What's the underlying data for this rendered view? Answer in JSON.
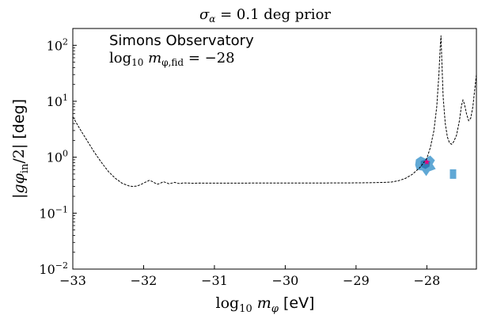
{
  "chart_data": {
    "type": "line",
    "title": "σ_α = 0.1 deg prior",
    "xlabel": "log10 mφ [eV]",
    "ylabel": "|gφin/2| [deg]",
    "x_scale": "linear",
    "y_scale": "log",
    "xlim": [
      -33,
      -27.3
    ],
    "ylim": [
      0.01,
      200
    ],
    "grid": false,
    "x_tick_labels": [
      "−33",
      "−32",
      "−31",
      "−30",
      "−29",
      "−28"
    ],
    "x_tick_values": [
      -33,
      -32,
      -31,
      -30,
      -29,
      -28
    ],
    "y_tick_values": [
      0.01,
      0.1,
      1,
      10,
      100
    ],
    "y_tick_labels": [
      {
        "base": "10",
        "exp": "−2"
      },
      {
        "base": "10",
        "exp": "−1"
      },
      {
        "base": "10",
        "exp": "0"
      },
      {
        "base": "10",
        "exp": "1"
      },
      {
        "base": "10",
        "exp": "2"
      }
    ],
    "annotation": {
      "line1": "Simons Observatory",
      "line2_main": "log",
      "line2_sub": "10",
      "line2_m": " m",
      "line2_msub": "φ,fid",
      "line2_value": " = −28"
    },
    "series": [
      {
        "style": "dashed",
        "color": "#000000",
        "points": [
          [
            -33.0,
            5.3
          ],
          [
            -32.9,
            3.2
          ],
          [
            -32.8,
            2.0
          ],
          [
            -32.7,
            1.25
          ],
          [
            -32.6,
            0.82
          ],
          [
            -32.5,
            0.56
          ],
          [
            -32.4,
            0.42
          ],
          [
            -32.3,
            0.34
          ],
          [
            -32.2,
            0.305
          ],
          [
            -32.15,
            0.3
          ],
          [
            -32.1,
            0.305
          ],
          [
            -32.05,
            0.32
          ],
          [
            -32.0,
            0.345
          ],
          [
            -31.95,
            0.37
          ],
          [
            -31.92,
            0.385
          ],
          [
            -31.88,
            0.37
          ],
          [
            -31.84,
            0.345
          ],
          [
            -31.8,
            0.33
          ],
          [
            -31.76,
            0.345
          ],
          [
            -31.72,
            0.365
          ],
          [
            -31.68,
            0.35
          ],
          [
            -31.64,
            0.335
          ],
          [
            -31.6,
            0.345
          ],
          [
            -31.56,
            0.355
          ],
          [
            -31.52,
            0.342
          ],
          [
            -31.48,
            0.338
          ],
          [
            -31.44,
            0.348
          ],
          [
            -31.4,
            0.346
          ],
          [
            -31.3,
            0.342
          ],
          [
            -31.2,
            0.345
          ],
          [
            -31.0,
            0.344
          ],
          [
            -30.5,
            0.345
          ],
          [
            -30.0,
            0.345
          ],
          [
            -29.5,
            0.346
          ],
          [
            -29.0,
            0.348
          ],
          [
            -28.8,
            0.35
          ],
          [
            -28.6,
            0.355
          ],
          [
            -28.5,
            0.36
          ],
          [
            -28.4,
            0.38
          ],
          [
            -28.3,
            0.42
          ],
          [
            -28.2,
            0.5
          ],
          [
            -28.1,
            0.65
          ],
          [
            -28.0,
            0.95
          ],
          [
            -27.95,
            1.5
          ],
          [
            -27.9,
            3.0
          ],
          [
            -27.86,
            8.0
          ],
          [
            -27.83,
            30.0
          ],
          [
            -27.81,
            100.0
          ],
          [
            -27.8,
            150.0
          ],
          [
            -27.79,
            60.0
          ],
          [
            -27.77,
            12.0
          ],
          [
            -27.74,
            4.0
          ],
          [
            -27.71,
            2.3
          ],
          [
            -27.68,
            1.8
          ],
          [
            -27.65,
            1.7
          ],
          [
            -27.62,
            1.9
          ],
          [
            -27.58,
            2.5
          ],
          [
            -27.54,
            4.5
          ],
          [
            -27.51,
            8.5
          ],
          [
            -27.49,
            10.5
          ],
          [
            -27.47,
            9.0
          ],
          [
            -27.44,
            6.0
          ],
          [
            -27.41,
            4.5
          ],
          [
            -27.38,
            5.0
          ],
          [
            -27.35,
            8.0
          ],
          [
            -27.32,
            18.0
          ],
          [
            -27.3,
            30.0
          ]
        ]
      }
    ],
    "markers": [
      {
        "x": -28.0,
        "y": 0.82,
        "color": "#e6007e",
        "shape": "star"
      }
    ],
    "posterior_blobs": [
      {
        "x": -28.02,
        "y": 0.75,
        "color": "#4f9fd0"
      },
      {
        "x": -27.63,
        "y": 0.5,
        "color": "#4f9fd0"
      }
    ]
  }
}
